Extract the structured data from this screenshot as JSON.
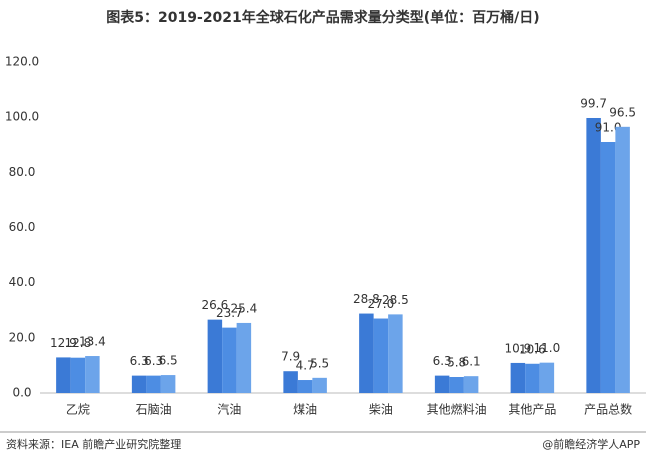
{
  "chart_data": {
    "type": "bar",
    "title": "图表5：2019-2021年全球石化产品需求量分类型(单位：百万桶/日)",
    "source": "资料来源：IEA 前瞻产业研究院整理",
    "credit": "@前瞻经济学人APP",
    "categories": [
      "乙烷",
      "石脑油",
      "汽油",
      "煤油",
      "柴油",
      "其他燃料油",
      "其他产品",
      "产品总数"
    ],
    "series": [
      {
        "color": "#3b7ad6",
        "values": [
          12.9,
          6.3,
          26.6,
          7.9,
          28.8,
          6.3,
          10.9,
          99.7
        ],
        "value_labels": [
          "12.9",
          "6.3",
          "26.6",
          "7.9",
          "28.8",
          "6.3",
          "10.9",
          "99.7"
        ]
      },
      {
        "color": "#4d8de3",
        "values": [
          12.8,
          6.3,
          23.7,
          4.7,
          27.0,
          5.8,
          10.6,
          91.0
        ],
        "value_labels": [
          "12.8",
          "6.3",
          "23.7",
          "4.7",
          "27.0",
          "5.8",
          "10.6",
          "91.0"
        ]
      },
      {
        "color": "#6ca4ea",
        "values": [
          13.4,
          6.5,
          25.4,
          5.5,
          28.5,
          6.1,
          11.0,
          96.5
        ],
        "value_labels": [
          "13.4",
          "6.5",
          "25.4",
          "5.5",
          "28.5",
          "6.1",
          "11.0",
          "96.5"
        ]
      }
    ],
    "ylim": [
      0,
      120
    ],
    "yticks": [
      {
        "value": 0,
        "label": "0.0"
      },
      {
        "value": 20,
        "label": "20.0"
      },
      {
        "value": 40,
        "label": "40.0"
      },
      {
        "value": 60,
        "label": "60.0"
      },
      {
        "value": 80,
        "label": "80.0"
      },
      {
        "value": 100,
        "label": "100.0"
      },
      {
        "value": 120,
        "label": "120.0"
      }
    ],
    "grid": false
  }
}
